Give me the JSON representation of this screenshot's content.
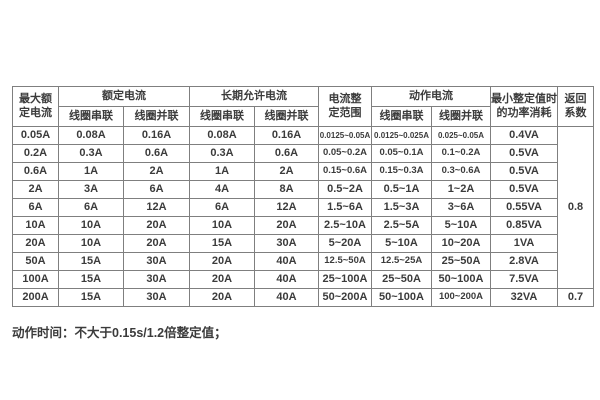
{
  "page": {
    "background_color": "#ffffff",
    "text_color": "#3b3b3b",
    "border_color": "#7f7f7f"
  },
  "table": {
    "header": {
      "max_rated_current_line1": "最大额",
      "max_rated_current_line2": "定电流",
      "rated_current_group": "额定电流",
      "long_term_current_group": "长期允许电流",
      "setting_range_line1": "电流整",
      "setting_range_line2": "定范围",
      "operating_current_group": "动作电流",
      "min_power_line1": "最小整定值时",
      "min_power_line2": "的功率消耗",
      "return_coeff_line1": "返回",
      "return_coeff_line2": "系数",
      "coil_series_label": "线圈串联",
      "coil_parallel_label": "线圈并联"
    },
    "rows": [
      [
        "0.05A",
        "0.08A",
        "0.16A",
        "0.08A",
        "0.16A",
        "0.0125~0.05A",
        "0.0125~0.025A",
        "0.025~0.05A",
        "0.4VA"
      ],
      [
        "0.2A",
        "0.3A",
        "0.6A",
        "0.3A",
        "0.6A",
        "0.05~0.2A",
        "0.05~0.1A",
        "0.1~0.2A",
        "0.5VA"
      ],
      [
        "0.6A",
        "1A",
        "2A",
        "1A",
        "2A",
        "0.15~0.6A",
        "0.15~0.3A",
        "0.3~0.6A",
        "0.5VA"
      ],
      [
        "2A",
        "3A",
        "6A",
        "4A",
        "8A",
        "0.5~2A",
        "0.5~1A",
        "1~2A",
        "0.5VA"
      ],
      [
        "6A",
        "6A",
        "12A",
        "6A",
        "12A",
        "1.5~6A",
        "1.5~3A",
        "3~6A",
        "0.55VA"
      ],
      [
        "10A",
        "10A",
        "20A",
        "10A",
        "20A",
        "2.5~10A",
        "2.5~5A",
        "5~10A",
        "0.85VA"
      ],
      [
        "20A",
        "10A",
        "20A",
        "15A",
        "30A",
        "5~20A",
        "5~10A",
        "10~20A",
        "1VA"
      ],
      [
        "50A",
        "15A",
        "30A",
        "20A",
        "40A",
        "12.5~50A",
        "12.5~25A",
        "25~50A",
        "2.8VA"
      ],
      [
        "100A",
        "15A",
        "30A",
        "20A",
        "40A",
        "25~100A",
        "25~50A",
        "50~100A",
        "7.5VA"
      ],
      [
        "200A",
        "15A",
        "30A",
        "20A",
        "40A",
        "50~200A",
        "50~100A",
        "100~200A",
        "32VA"
      ]
    ],
    "return_coefficient": {
      "rows_1_to_9": "0.8",
      "row_10": "0.7"
    }
  },
  "footer_note": "动作时间：不大于0.15s/1.2倍整定值；"
}
